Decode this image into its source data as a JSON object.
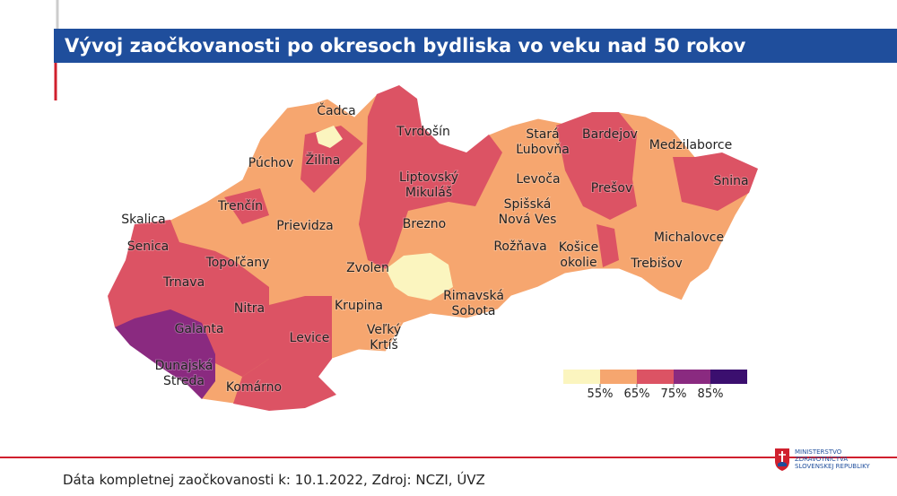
{
  "header": {
    "title": "Vývoj zaočkovanosti po okresoch bydliska vo veku nad 50 rokov"
  },
  "map": {
    "regions": [
      {
        "lines": [
          "Čadca"
        ],
        "color": "#f6a66f"
      },
      {
        "lines": [
          "Tvrdošín"
        ],
        "color": "#dc5364"
      },
      {
        "lines": [
          "Púchov"
        ],
        "color": "#f6a66f"
      },
      {
        "lines": [
          "Žilina"
        ],
        "color": "#dc5364"
      },
      {
        "lines": [
          "Liptovský",
          "Mikuláš"
        ],
        "color": "#dc5364"
      },
      {
        "lines": [
          "Stará",
          "Ľubovňa"
        ],
        "color": "#f6a66f"
      },
      {
        "lines": [
          "Bardejov"
        ],
        "color": "#dc5364"
      },
      {
        "lines": [
          "Medzilaborce"
        ],
        "color": "#f6a66f"
      },
      {
        "lines": [
          "Levoča"
        ],
        "color": "#f6a66f"
      },
      {
        "lines": [
          "Prešov"
        ],
        "color": "#dc5364"
      },
      {
        "lines": [
          "Snina"
        ],
        "color": "#dc5364"
      },
      {
        "lines": [
          "Trenčín"
        ],
        "color": "#dc5364"
      },
      {
        "lines": [
          "Prievidza"
        ],
        "color": "#f6a66f"
      },
      {
        "lines": [
          "Brezno"
        ],
        "color": "#f6a66f"
      },
      {
        "lines": [
          "Spišská",
          "Nová Ves"
        ],
        "color": "#f6a66f"
      },
      {
        "lines": [
          "Skalica"
        ],
        "color": "#dc5364"
      },
      {
        "lines": [
          "Senica"
        ],
        "color": "#f6a66f"
      },
      {
        "lines": [
          "Rožňava"
        ],
        "color": "#f6a66f"
      },
      {
        "lines": [
          "Košice",
          "okolie"
        ],
        "color": "#f6a66f"
      },
      {
        "lines": [
          "Michalovce"
        ],
        "color": "#f6a66f"
      },
      {
        "lines": [
          "Trebišov"
        ],
        "color": "#f6a66f"
      },
      {
        "lines": [
          "Topoľčany"
        ],
        "color": "#dc5364"
      },
      {
        "lines": [
          "Zvolen"
        ],
        "color": "#dc5364"
      },
      {
        "lines": [
          "Trnava"
        ],
        "color": "#dc5364"
      },
      {
        "lines": [
          "Rimavská",
          "Sobota"
        ],
        "color": "#f6a66f"
      },
      {
        "lines": [
          "Nitra"
        ],
        "color": "#dc5364"
      },
      {
        "lines": [
          "Krupina"
        ],
        "color": "#f6a66f"
      },
      {
        "lines": [
          "Galanta"
        ],
        "color": "#8a2a80"
      },
      {
        "lines": [
          "Levice"
        ],
        "color": "#dc5364"
      },
      {
        "lines": [
          "Veľký",
          "Krtíš"
        ],
        "color": "#f6a66f"
      },
      {
        "lines": [
          "Dunajská",
          "Streda"
        ],
        "color": "#8a2a80"
      },
      {
        "lines": [
          "Komárno"
        ],
        "color": "#dc5364"
      }
    ]
  },
  "legend": {
    "colors": [
      "#fbf5bf",
      "#f6a66f",
      "#dc5364",
      "#8a2a80",
      "#3b0f6f"
    ],
    "ticks": [
      {
        "value": 55,
        "label": "55%"
      },
      {
        "value": 65,
        "label": "65%"
      },
      {
        "value": 75,
        "label": "75%"
      },
      {
        "value": 85,
        "label": "85%"
      }
    ]
  },
  "footer": {
    "text": "Dáta kompletnej zaočkovanosti k: 10.1.2022, Zdroj: NCZI, ÚVZ"
  },
  "logo": {
    "lines": [
      "MINISTERSTVO",
      "ZDRAVOTNÍCTVA",
      "SLOVENSKEJ REPUBLIKY"
    ]
  }
}
